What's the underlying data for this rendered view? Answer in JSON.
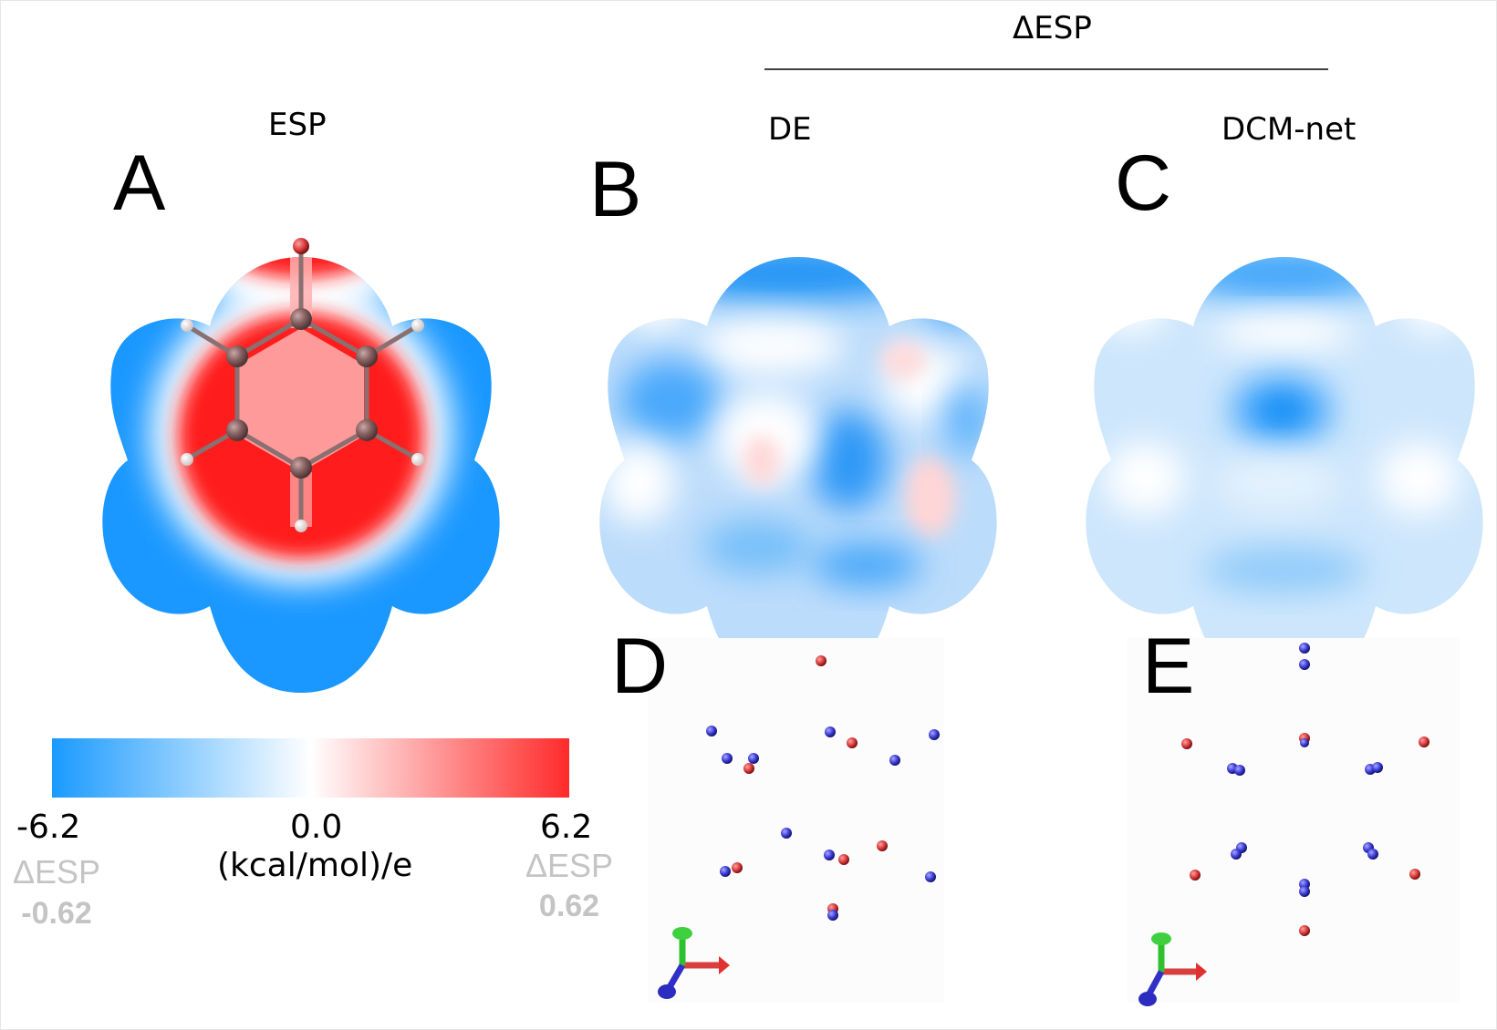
{
  "header": {
    "delta_title": "ΔESP"
  },
  "panels": [
    {
      "letter": "A",
      "title": "ESP"
    },
    {
      "letter": "B",
      "title": "DE"
    },
    {
      "letter": "C",
      "title": "DCM-net"
    },
    {
      "letter": "D"
    },
    {
      "letter": "E"
    }
  ],
  "colorbar": {
    "min_label": "-6.2",
    "mid_label": "0.0",
    "max_label": "6.2",
    "unit": "(kcal/mol)/e",
    "delta_label_left": "ΔESP",
    "delta_min": "-0.62",
    "delta_label_right": "ΔESP",
    "delta_max": "0.62",
    "colors": {
      "negative": "#1a9aff",
      "zero": "#ffffff",
      "positive": "#ff2222"
    }
  },
  "colors": {
    "surface_blue": "#1a98ff",
    "surface_red": "#ff1c1c",
    "charge_blue": "#3a3adc",
    "charge_red": "#d03030",
    "axis_x": "#e03030",
    "axis_y": "#2ec02e",
    "axis_z": "#3030c8"
  }
}
